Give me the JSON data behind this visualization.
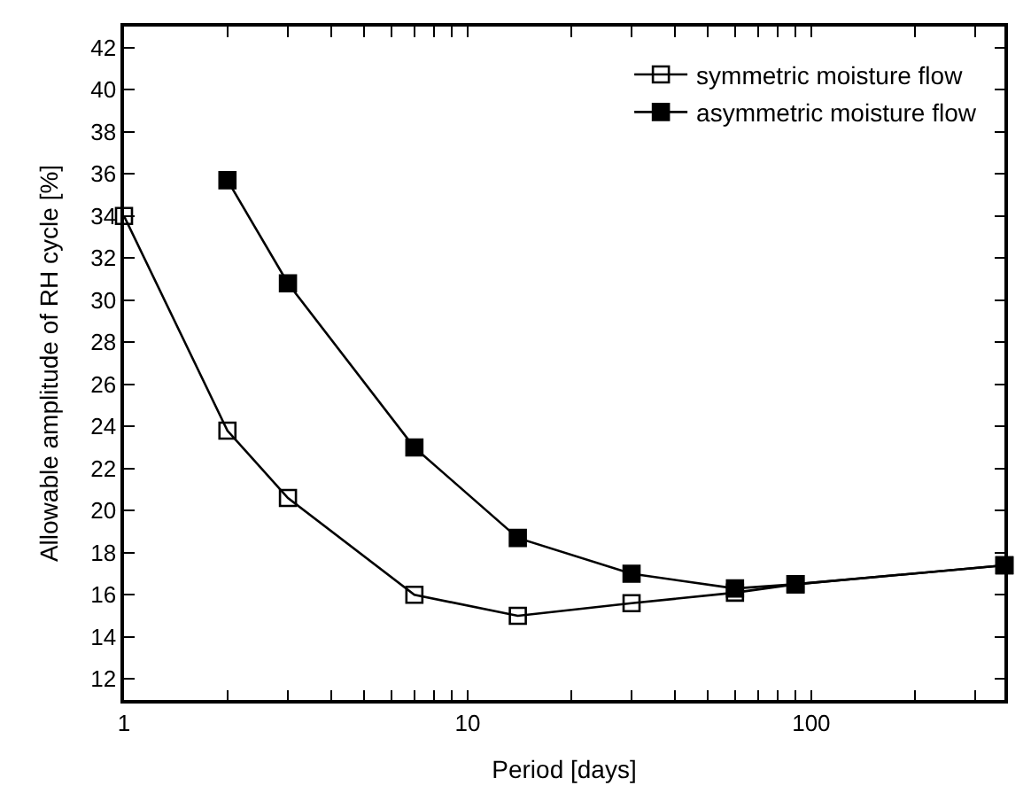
{
  "chart_data": {
    "type": "line",
    "xlabel": "Period [days]",
    "ylabel": "Allowable amplitude of RH cycle [%]",
    "log": "x",
    "xlim": [
      1,
      365
    ],
    "xticks": [
      1,
      {
        "value": 2,
        "label": null
      },
      {
        "value": 3,
        "label": null
      },
      {
        "value": 4,
        "label": null
      },
      {
        "value": 5,
        "label": null
      },
      {
        "value": 6,
        "label": null
      },
      {
        "value": 7,
        "label": null
      },
      {
        "value": 8,
        "label": null
      },
      {
        "value": 9,
        "label": null
      },
      10,
      {
        "value": 20,
        "label": null
      },
      {
        "value": 30,
        "label": null
      },
      {
        "value": 40,
        "label": null
      },
      {
        "value": 50,
        "label": null
      },
      {
        "value": 60,
        "label": null
      },
      {
        "value": 70,
        "label": null
      },
      {
        "value": 80,
        "label": null
      },
      {
        "value": 90,
        "label": null
      },
      100,
      {
        "value": 200,
        "label": null
      },
      {
        "value": 300,
        "label": null
      }
    ],
    "ylim": [
      11,
      43
    ],
    "yticks": [
      12,
      14,
      16,
      18,
      20,
      22,
      24,
      26,
      28,
      30,
      32,
      34,
      36,
      38,
      40,
      42
    ],
    "legend": "top right",
    "line_style": "solid",
    "series": [
      {
        "name": "symmetric moisture flow",
        "color": "#000000",
        "marker": "square-open",
        "x": [
          1,
          2,
          3,
          7,
          14,
          30,
          60,
          90,
          365
        ],
        "values": [
          34.0,
          23.8,
          20.6,
          16.0,
          15.0,
          15.6,
          16.1,
          16.5,
          17.4
        ]
      },
      {
        "name": "asymmetric moisture flow",
        "color": "#000000",
        "marker": "square",
        "x": [
          2,
          3,
          7,
          14,
          30,
          60,
          90,
          365
        ],
        "values": [
          35.7,
          30.8,
          23.0,
          18.7,
          17.0,
          16.3,
          16.5,
          17.4
        ]
      }
    ]
  }
}
